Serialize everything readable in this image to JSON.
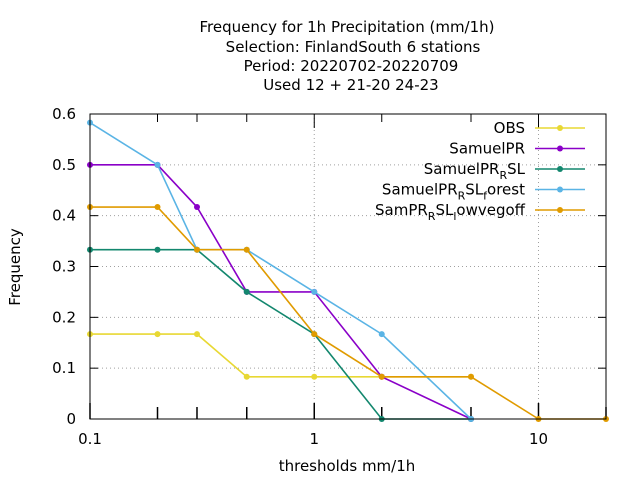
{
  "chart_data": {
    "type": "line",
    "title_lines": [
      "Frequency  for 1h Precipitation (mm/1h)",
      "Selection: FinlandSouth      6 stations",
      "Period: 20220702-20220709",
      "Used  12 + 21-20 24-23"
    ],
    "xlabel": "thresholds mm/1h",
    "ylabel": "Frequency",
    "xscale": "log",
    "xlim": [
      0.1,
      20
    ],
    "ylim": [
      0,
      0.6
    ],
    "x_tick_labels": [
      "0.1",
      "1",
      "10"
    ],
    "y_tick_labels": [
      "0",
      "0.1",
      "0.2",
      "0.3",
      "0.4",
      "0.5",
      "0.6"
    ],
    "grid": true,
    "legend_position": "top-right",
    "x": [
      0.1,
      0.2,
      0.3,
      0.5,
      1,
      2,
      5,
      10,
      20
    ],
    "series": [
      {
        "name": "OBS",
        "color": "#e8d833",
        "values": [
          0.167,
          0.167,
          0.167,
          0.083,
          0.083,
          0.083,
          0.083,
          null,
          null
        ]
      },
      {
        "name": "SamuelPR",
        "color": "#8a00c8",
        "values": [
          0.5,
          0.5,
          0.417,
          0.25,
          0.25,
          0.083,
          0.0,
          null,
          null
        ]
      },
      {
        "name": "SamuelPR_RSL",
        "color": "#13876e",
        "values": [
          0.333,
          0.333,
          0.333,
          0.25,
          0.167,
          0.0,
          0.0,
          null,
          null
        ]
      },
      {
        "name": "SamuelPR_RSL_forest",
        "color": "#5ab4e5",
        "values": [
          0.583,
          0.5,
          0.333,
          0.333,
          0.25,
          0.167,
          0.0,
          null,
          null
        ]
      },
      {
        "name": "SamPR_RSL_lowvegoff",
        "color": "#e09b00",
        "values": [
          0.417,
          0.417,
          0.333,
          0.333,
          0.167,
          0.083,
          0.083,
          0.0,
          0.0
        ]
      }
    ],
    "legend_labels": [
      {
        "parts": [
          [
            "OBS",
            ""
          ]
        ]
      },
      {
        "parts": [
          [
            "SamuelPR",
            ""
          ]
        ]
      },
      {
        "parts": [
          [
            "SamuelPR",
            ""
          ],
          [
            "R",
            "sub"
          ],
          [
            "SL",
            ""
          ]
        ]
      },
      {
        "parts": [
          [
            "SamuelPR",
            ""
          ],
          [
            "R",
            "sub"
          ],
          [
            "SL",
            ""
          ],
          [
            "f",
            "sub"
          ],
          [
            "orest",
            ""
          ]
        ]
      },
      {
        "parts": [
          [
            "SamPR",
            ""
          ],
          [
            "R",
            "sub"
          ],
          [
            "SL",
            ""
          ],
          [
            "l",
            "sub"
          ],
          [
            "owvegoff",
            ""
          ]
        ]
      }
    ]
  }
}
